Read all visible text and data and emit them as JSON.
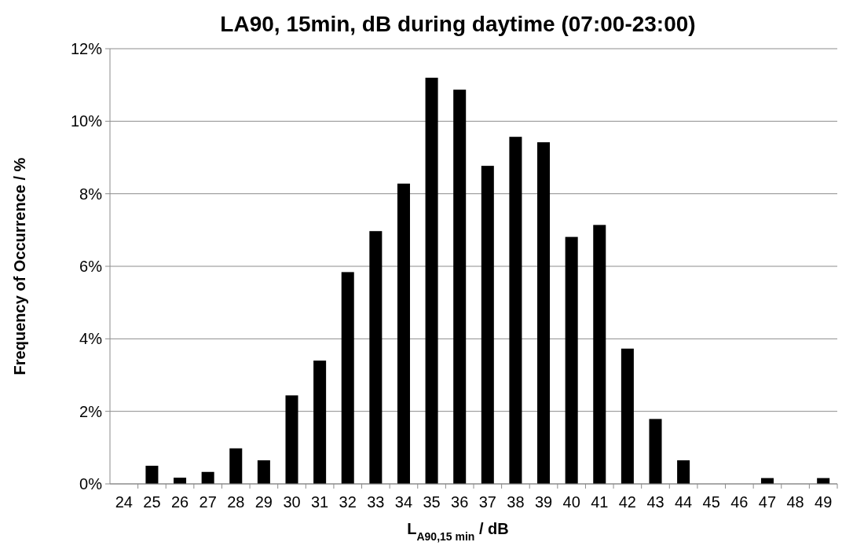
{
  "chart_data": {
    "type": "bar",
    "title": "LA90, 15min, dB during daytime (07:00-23:00)",
    "xlabel": "L$_{A90,15 min}$ / dB",
    "ylabel": "Frequency of Occurrence / %",
    "categories": [
      "24",
      "25",
      "26",
      "27",
      "28",
      "29",
      "30",
      "31",
      "32",
      "33",
      "34",
      "35",
      "36",
      "37",
      "38",
      "39",
      "40",
      "41",
      "42",
      "43",
      "44",
      "45",
      "46",
      "47",
      "48",
      "49"
    ],
    "values": [
      0,
      0.5,
      0.17,
      0.33,
      0.98,
      0.65,
      2.44,
      3.4,
      5.84,
      6.97,
      8.28,
      11.2,
      10.87,
      8.77,
      9.57,
      9.42,
      6.81,
      7.14,
      3.73,
      1.79,
      0.65,
      0,
      0,
      0.16,
      0,
      0.16
    ],
    "color": "#000000",
    "ylim": [
      0,
      12
    ],
    "yticks": [
      {
        "value": 0,
        "label": "0%"
      },
      {
        "value": 2,
        "label": "2%"
      },
      {
        "value": 4,
        "label": "4%"
      },
      {
        "value": 6,
        "label": "6%"
      },
      {
        "value": 8,
        "label": "8%"
      },
      {
        "value": 10,
        "label": "10%"
      },
      {
        "value": 12,
        "label": "12%"
      }
    ],
    "grid": "y"
  }
}
